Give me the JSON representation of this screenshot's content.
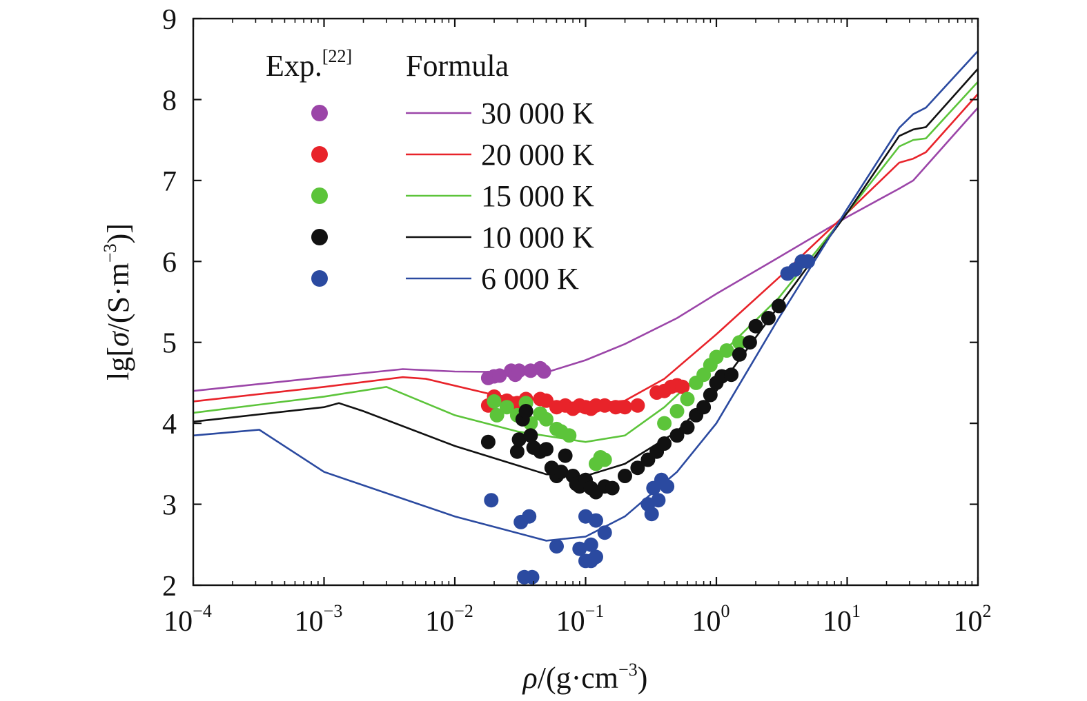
{
  "chart_data": {
    "type": "scatter",
    "x_scale": "log",
    "xlim": [
      0.0001,
      100
    ],
    "ylim": [
      2,
      9
    ],
    "x_ticks": [
      {
        "base": "10",
        "exp": "−4"
      },
      {
        "base": "10",
        "exp": "−3"
      },
      {
        "base": "10",
        "exp": "−2"
      },
      {
        "base": "10",
        "exp": "−1"
      },
      {
        "base": "10",
        "exp": "0"
      },
      {
        "base": "10",
        "exp": "1"
      },
      {
        "base": "10",
        "exp": "2"
      }
    ],
    "y_ticks": [
      "2",
      "3",
      "4",
      "5",
      "6",
      "7",
      "8",
      "9"
    ],
    "xlabel": {
      "sym": "ρ",
      "pre": "/(g·cm",
      "sup": "−3",
      "post": ")"
    },
    "ylabel": {
      "pre": "lg[",
      "sym": "σ",
      "mid": "/(S·m",
      "sup": "−3",
      "post": ")]"
    },
    "legend": {
      "header_exp": "Exp.",
      "header_exp_ref": "[22]",
      "header_formula": "Formula",
      "placement": "top-left"
    },
    "series": [
      {
        "name": "30 000 K",
        "color": "#9b45a8",
        "formula": [
          [
            0.0001,
            4.4
          ],
          [
            0.001,
            4.57
          ],
          [
            0.004,
            4.67
          ],
          [
            0.01,
            4.64
          ],
          [
            0.05,
            4.63
          ],
          [
            0.1,
            4.78
          ],
          [
            0.2,
            4.98
          ],
          [
            0.5,
            5.3
          ],
          [
            1,
            5.6
          ],
          [
            3,
            6.05
          ],
          [
            10,
            6.55
          ],
          [
            25,
            6.9
          ],
          [
            32,
            7.0
          ],
          [
            100,
            7.9
          ]
        ],
        "exp": [
          [
            0.018,
            4.56
          ],
          [
            0.02,
            4.58
          ],
          [
            0.022,
            4.59
          ],
          [
            0.027,
            4.65
          ],
          [
            0.029,
            4.6
          ],
          [
            0.031,
            4.65
          ],
          [
            0.038,
            4.65
          ],
          [
            0.045,
            4.68
          ],
          [
            0.048,
            4.64
          ]
        ]
      },
      {
        "name": "20 000 K",
        "color": "#e8232a",
        "formula": [
          [
            0.0001,
            4.27
          ],
          [
            0.001,
            4.45
          ],
          [
            0.004,
            4.57
          ],
          [
            0.006,
            4.55
          ],
          [
            0.02,
            4.35
          ],
          [
            0.05,
            4.27
          ],
          [
            0.1,
            4.23
          ],
          [
            0.2,
            4.28
          ],
          [
            0.4,
            4.55
          ],
          [
            1,
            5.1
          ],
          [
            3,
            5.8
          ],
          [
            10,
            6.6
          ],
          [
            25,
            7.22
          ],
          [
            32,
            7.27
          ],
          [
            40,
            7.35
          ],
          [
            100,
            8.07
          ]
        ],
        "exp": [
          [
            0.018,
            4.22
          ],
          [
            0.02,
            4.33
          ],
          [
            0.025,
            4.28
          ],
          [
            0.03,
            4.25
          ],
          [
            0.035,
            4.3
          ],
          [
            0.045,
            4.3
          ],
          [
            0.05,
            4.28
          ],
          [
            0.06,
            4.2
          ],
          [
            0.07,
            4.22
          ],
          [
            0.08,
            4.18
          ],
          [
            0.09,
            4.22
          ],
          [
            0.1,
            4.2
          ],
          [
            0.11,
            4.18
          ],
          [
            0.12,
            4.22
          ],
          [
            0.14,
            4.22
          ],
          [
            0.17,
            4.2
          ],
          [
            0.2,
            4.2
          ],
          [
            0.25,
            4.22
          ],
          [
            0.35,
            4.38
          ],
          [
            0.4,
            4.4
          ],
          [
            0.45,
            4.45
          ],
          [
            0.5,
            4.47
          ],
          [
            0.55,
            4.45
          ]
        ]
      },
      {
        "name": "15 000 K",
        "color": "#5cc43a",
        "formula": [
          [
            0.0001,
            4.13
          ],
          [
            0.001,
            4.33
          ],
          [
            0.003,
            4.45
          ],
          [
            0.01,
            4.1
          ],
          [
            0.03,
            3.9
          ],
          [
            0.1,
            3.77
          ],
          [
            0.2,
            3.85
          ],
          [
            0.4,
            4.2
          ],
          [
            1,
            4.8
          ],
          [
            3,
            5.55
          ],
          [
            10,
            6.6
          ],
          [
            25,
            7.42
          ],
          [
            32,
            7.5
          ],
          [
            40,
            7.52
          ],
          [
            100,
            8.22
          ]
        ],
        "exp": [
          [
            0.02,
            4.27
          ],
          [
            0.021,
            4.1
          ],
          [
            0.025,
            4.2
          ],
          [
            0.03,
            4.1
          ],
          [
            0.035,
            4.25
          ],
          [
            0.038,
            4.0
          ],
          [
            0.045,
            4.12
          ],
          [
            0.05,
            4.05
          ],
          [
            0.06,
            3.93
          ],
          [
            0.065,
            3.9
          ],
          [
            0.075,
            3.85
          ],
          [
            0.12,
            3.5
          ],
          [
            0.13,
            3.58
          ],
          [
            0.14,
            3.55
          ],
          [
            0.4,
            4.0
          ],
          [
            0.5,
            4.15
          ],
          [
            0.6,
            4.3
          ],
          [
            0.7,
            4.5
          ],
          [
            0.8,
            4.6
          ],
          [
            0.9,
            4.72
          ],
          [
            1.0,
            4.82
          ],
          [
            1.2,
            4.9
          ],
          [
            1.5,
            5.0
          ]
        ]
      },
      {
        "name": "10 000 K",
        "color": "#111111",
        "formula": [
          [
            0.0001,
            4.02
          ],
          [
            0.001,
            4.2
          ],
          [
            0.0013,
            4.25
          ],
          [
            0.002,
            4.15
          ],
          [
            0.01,
            3.72
          ],
          [
            0.05,
            3.37
          ],
          [
            0.1,
            3.35
          ],
          [
            0.2,
            3.5
          ],
          [
            0.5,
            3.9
          ],
          [
            1,
            4.4
          ],
          [
            3,
            5.45
          ],
          [
            10,
            6.6
          ],
          [
            25,
            7.55
          ],
          [
            32,
            7.63
          ],
          [
            40,
            7.66
          ],
          [
            100,
            8.38
          ]
        ],
        "exp": [
          [
            0.018,
            3.77
          ],
          [
            0.03,
            3.65
          ],
          [
            0.031,
            3.8
          ],
          [
            0.033,
            4.05
          ],
          [
            0.035,
            4.15
          ],
          [
            0.038,
            3.85
          ],
          [
            0.04,
            3.7
          ],
          [
            0.045,
            3.65
          ],
          [
            0.05,
            3.68
          ],
          [
            0.055,
            3.45
          ],
          [
            0.06,
            3.35
          ],
          [
            0.065,
            3.4
          ],
          [
            0.07,
            3.6
          ],
          [
            0.08,
            3.35
          ],
          [
            0.085,
            3.25
          ],
          [
            0.09,
            3.22
          ],
          [
            0.1,
            3.3
          ],
          [
            0.11,
            3.2
          ],
          [
            0.12,
            3.15
          ],
          [
            0.14,
            3.22
          ],
          [
            0.16,
            3.2
          ],
          [
            0.2,
            3.35
          ],
          [
            0.25,
            3.45
          ],
          [
            0.3,
            3.55
          ],
          [
            0.35,
            3.65
          ],
          [
            0.4,
            3.75
          ],
          [
            0.5,
            3.85
          ],
          [
            0.6,
            3.95
          ],
          [
            0.7,
            4.1
          ],
          [
            0.8,
            4.2
          ],
          [
            0.9,
            4.35
          ],
          [
            1.0,
            4.5
          ],
          [
            1.1,
            4.58
          ],
          [
            1.3,
            4.6
          ],
          [
            1.5,
            4.85
          ],
          [
            1.8,
            5.0
          ],
          [
            2.0,
            5.2
          ],
          [
            2.5,
            5.3
          ],
          [
            3.0,
            5.45
          ]
        ]
      },
      {
        "name": "6 000 K",
        "color": "#2b4aa0",
        "formula": [
          [
            0.0001,
            3.85
          ],
          [
            0.00032,
            3.92
          ],
          [
            0.001,
            3.4
          ],
          [
            0.01,
            2.85
          ],
          [
            0.05,
            2.55
          ],
          [
            0.1,
            2.6
          ],
          [
            0.2,
            2.85
          ],
          [
            0.5,
            3.4
          ],
          [
            1,
            4.0
          ],
          [
            3,
            5.3
          ],
          [
            10,
            6.65
          ],
          [
            25,
            7.65
          ],
          [
            32,
            7.82
          ],
          [
            40,
            7.9
          ],
          [
            100,
            8.6
          ]
        ],
        "exp": [
          [
            0.019,
            3.05
          ],
          [
            0.032,
            2.78
          ],
          [
            0.034,
            2.1
          ],
          [
            0.037,
            2.85
          ],
          [
            0.039,
            2.1
          ],
          [
            0.06,
            2.48
          ],
          [
            0.09,
            2.45
          ],
          [
            0.1,
            2.3
          ],
          [
            0.1,
            2.85
          ],
          [
            0.11,
            2.5
          ],
          [
            0.11,
            2.3
          ],
          [
            0.12,
            2.8
          ],
          [
            0.12,
            2.35
          ],
          [
            0.14,
            2.65
          ],
          [
            0.3,
            3.0
          ],
          [
            0.32,
            2.88
          ],
          [
            0.33,
            3.2
          ],
          [
            0.36,
            3.05
          ],
          [
            0.38,
            3.3
          ],
          [
            0.42,
            3.22
          ],
          [
            3.5,
            5.85
          ],
          [
            4.0,
            5.9
          ],
          [
            4.5,
            6.0
          ],
          [
            5.0,
            6.0
          ]
        ]
      }
    ]
  }
}
